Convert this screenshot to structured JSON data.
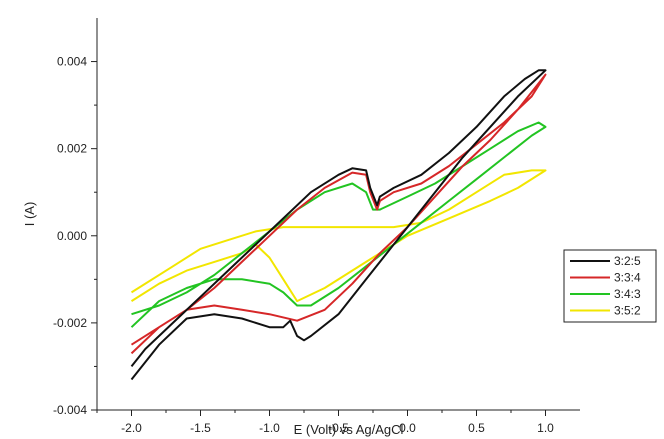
{
  "chart_data": {
    "type": "line",
    "xlabel": "E (Volt) vs Ag/AgCl",
    "ylabel": "I (A)",
    "xlim": [
      -2.25,
      1.25
    ],
    "ylim": [
      -0.004,
      0.005
    ],
    "xticks": [
      "-2.0",
      "-1.5",
      "-1.0",
      "-0.5",
      "0.0",
      "0.5",
      "1.0"
    ],
    "yticks": [
      "-0.004",
      "-0.002",
      "0.000",
      "0.002",
      "0.004"
    ],
    "legend_position": "right",
    "grid": false,
    "series": [
      {
        "name": "3:2:5",
        "color": "#111111",
        "points": [
          [
            -2.0,
            -0.0033
          ],
          [
            -1.8,
            -0.0025
          ],
          [
            -1.6,
            -0.0019
          ],
          [
            -1.4,
            -0.0018
          ],
          [
            -1.2,
            -0.0019
          ],
          [
            -1.0,
            -0.0021
          ],
          [
            -0.9,
            -0.0021
          ],
          [
            -0.85,
            -0.00195
          ],
          [
            -0.8,
            -0.0023
          ],
          [
            -0.75,
            -0.0024
          ],
          [
            -0.7,
            -0.0023
          ],
          [
            -0.5,
            -0.0018
          ],
          [
            -0.3,
            -0.001
          ],
          [
            -0.1,
            -0.0002
          ],
          [
            0.0,
            0.0002
          ],
          [
            0.2,
            0.001
          ],
          [
            0.4,
            0.0018
          ],
          [
            0.6,
            0.0025
          ],
          [
            0.8,
            0.0032
          ],
          [
            1.0,
            0.0038
          ],
          [
            0.95,
            0.0038
          ],
          [
            0.85,
            0.0036
          ],
          [
            0.7,
            0.0032
          ],
          [
            0.5,
            0.0025
          ],
          [
            0.3,
            0.0019
          ],
          [
            0.1,
            0.0014
          ],
          [
            -0.1,
            0.0011
          ],
          [
            -0.2,
            0.0009
          ],
          [
            -0.22,
            0.0007
          ],
          [
            -0.27,
            0.0011
          ],
          [
            -0.3,
            0.0015
          ],
          [
            -0.4,
            0.00155
          ],
          [
            -0.5,
            0.0014
          ],
          [
            -0.7,
            0.001
          ],
          [
            -0.9,
            0.0004
          ],
          [
            -1.1,
            -0.0002
          ],
          [
            -1.3,
            -0.0008
          ],
          [
            -1.5,
            -0.0014
          ],
          [
            -1.7,
            -0.002
          ],
          [
            -1.9,
            -0.0026
          ],
          [
            -2.0,
            -0.003
          ]
        ]
      },
      {
        "name": "3:3:4",
        "color": "#d62728",
        "points": [
          [
            -2.0,
            -0.0027
          ],
          [
            -1.8,
            -0.0021
          ],
          [
            -1.6,
            -0.0017
          ],
          [
            -1.4,
            -0.0016
          ],
          [
            -1.2,
            -0.0017
          ],
          [
            -1.0,
            -0.0018
          ],
          [
            -0.8,
            -0.00195
          ],
          [
            -0.6,
            -0.0017
          ],
          [
            -0.4,
            -0.0011
          ],
          [
            -0.2,
            -0.0004
          ],
          [
            0.0,
            0.0002
          ],
          [
            0.2,
            0.0009
          ],
          [
            0.4,
            0.0016
          ],
          [
            0.6,
            0.0022
          ],
          [
            0.8,
            0.0029
          ],
          [
            1.0,
            0.0037
          ],
          [
            0.9,
            0.0032
          ],
          [
            0.7,
            0.0026
          ],
          [
            0.5,
            0.0021
          ],
          [
            0.3,
            0.0016
          ],
          [
            0.1,
            0.0012
          ],
          [
            -0.1,
            0.001
          ],
          [
            -0.2,
            0.0008
          ],
          [
            -0.22,
            0.0006
          ],
          [
            -0.27,
            0.001
          ],
          [
            -0.3,
            0.0014
          ],
          [
            -0.4,
            0.00145
          ],
          [
            -0.6,
            0.0011
          ],
          [
            -0.8,
            0.0006
          ],
          [
            -1.0,
            0.0
          ],
          [
            -1.2,
            -0.0006
          ],
          [
            -1.4,
            -0.0012
          ],
          [
            -1.6,
            -0.0017
          ],
          [
            -1.8,
            -0.0021
          ],
          [
            -2.0,
            -0.0025
          ]
        ]
      },
      {
        "name": "3:4:3",
        "color": "#22c422",
        "points": [
          [
            -2.0,
            -0.0021
          ],
          [
            -1.8,
            -0.0015
          ],
          [
            -1.6,
            -0.0012
          ],
          [
            -1.4,
            -0.001
          ],
          [
            -1.2,
            -0.001
          ],
          [
            -1.0,
            -0.0011
          ],
          [
            -0.9,
            -0.0013
          ],
          [
            -0.8,
            -0.0016
          ],
          [
            -0.7,
            -0.0016
          ],
          [
            -0.5,
            -0.0012
          ],
          [
            -0.3,
            -0.0007
          ],
          [
            -0.1,
            -0.0002
          ],
          [
            0.1,
            0.0003
          ],
          [
            0.3,
            0.0008
          ],
          [
            0.5,
            0.0013
          ],
          [
            0.7,
            0.0018
          ],
          [
            0.9,
            0.0023
          ],
          [
            1.0,
            0.0025
          ],
          [
            0.95,
            0.0026
          ],
          [
            0.8,
            0.0024
          ],
          [
            0.6,
            0.002
          ],
          [
            0.4,
            0.0016
          ],
          [
            0.2,
            0.0012
          ],
          [
            0.0,
            0.0009
          ],
          [
            -0.2,
            0.0006
          ],
          [
            -0.25,
            0.0006
          ],
          [
            -0.3,
            0.001
          ],
          [
            -0.4,
            0.0012
          ],
          [
            -0.6,
            0.001
          ],
          [
            -0.8,
            0.0006
          ],
          [
            -1.0,
            0.0001
          ],
          [
            -1.2,
            -0.0004
          ],
          [
            -1.4,
            -0.0009
          ],
          [
            -1.6,
            -0.0013
          ],
          [
            -1.8,
            -0.0016
          ],
          [
            -2.0,
            -0.0018
          ]
        ]
      },
      {
        "name": "3:5:2",
        "color": "#f2e600",
        "points": [
          [
            -2.0,
            -0.0015
          ],
          [
            -1.8,
            -0.0011
          ],
          [
            -1.6,
            -0.0008
          ],
          [
            -1.4,
            -0.0006
          ],
          [
            -1.2,
            -0.0004
          ],
          [
            -1.1,
            -0.0002
          ],
          [
            -1.0,
            -0.0005
          ],
          [
            -0.9,
            -0.001
          ],
          [
            -0.8,
            -0.0015
          ],
          [
            -0.6,
            -0.0012
          ],
          [
            -0.3,
            -0.0006
          ],
          [
            0.0,
            0.0
          ],
          [
            0.3,
            0.0004
          ],
          [
            0.6,
            0.0008
          ],
          [
            0.8,
            0.0011
          ],
          [
            1.0,
            0.0015
          ],
          [
            0.9,
            0.0015
          ],
          [
            0.7,
            0.0014
          ],
          [
            0.5,
            0.001
          ],
          [
            0.3,
            0.0006
          ],
          [
            0.1,
            0.0003
          ],
          [
            -0.1,
            0.0002
          ],
          [
            -0.3,
            0.0002
          ],
          [
            -0.6,
            0.0002
          ],
          [
            -0.9,
            0.0002
          ],
          [
            -1.1,
            0.0001
          ],
          [
            -1.3,
            -0.0001
          ],
          [
            -1.5,
            -0.0003
          ],
          [
            -1.7,
            -0.0007
          ],
          [
            -2.0,
            -0.0013
          ]
        ]
      }
    ]
  }
}
